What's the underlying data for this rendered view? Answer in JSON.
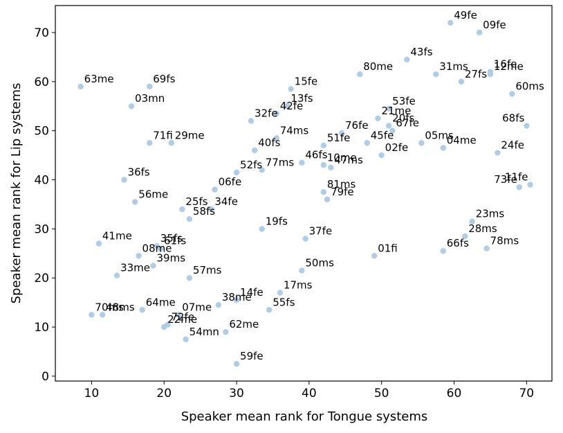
{
  "chart_data": {
    "type": "scatter",
    "xlabel": "Speaker mean rank for Tongue systems",
    "ylabel": "Speaker mean rank for Lip systems",
    "xlim": [
      5,
      73.5
    ],
    "ylim": [
      -1,
      75.5
    ],
    "xticks": [
      10,
      20,
      30,
      40,
      50,
      60,
      70
    ],
    "yticks": [
      0,
      10,
      20,
      30,
      40,
      50,
      60,
      70
    ],
    "grid": false,
    "marker_color": "#aecde8",
    "points": [
      {
        "label": "49fe",
        "x": 59.5,
        "y": 72
      },
      {
        "label": "09fe",
        "x": 63.5,
        "y": 70
      },
      {
        "label": "43fs",
        "x": 53.5,
        "y": 64.5
      },
      {
        "label": "31ms",
        "x": 57.5,
        "y": 61.5
      },
      {
        "label": "80me",
        "x": 47,
        "y": 61.5
      },
      {
        "label": "16fe",
        "x": 65,
        "y": 62
      },
      {
        "label": "27fs",
        "x": 61,
        "y": 60
      },
      {
        "label": "12me",
        "x": 65,
        "y": 61.5
      },
      {
        "label": "60ms",
        "x": 68,
        "y": 57.5
      },
      {
        "label": "63me",
        "x": 8.5,
        "y": 59
      },
      {
        "label": "69fs",
        "x": 18,
        "y": 59
      },
      {
        "label": "03mn",
        "x": 15.5,
        "y": 55
      },
      {
        "label": "15fe",
        "x": 37.5,
        "y": 58.5
      },
      {
        "label": "13fs",
        "x": 37,
        "y": 55
      },
      {
        "label": "32fe",
        "x": 32,
        "y": 52
      },
      {
        "label": "42fe",
        "x": 35.5,
        "y": 53.5
      },
      {
        "label": "74ms",
        "x": 35.5,
        "y": 48.5
      },
      {
        "label": "40fs",
        "x": 32.5,
        "y": 46
      },
      {
        "label": "53fe",
        "x": 51,
        "y": 54.5
      },
      {
        "label": "21me",
        "x": 49.5,
        "y": 52.5
      },
      {
        "label": "20fs",
        "x": 51,
        "y": 51
      },
      {
        "label": "76fe",
        "x": 44.5,
        "y": 49.5
      },
      {
        "label": "67fe",
        "x": 51.5,
        "y": 50
      },
      {
        "label": "68fs",
        "x": 70,
        "y": 51
      },
      {
        "label": "71fi",
        "x": 18,
        "y": 47.5
      },
      {
        "label": "29me",
        "x": 21,
        "y": 47.5
      },
      {
        "label": "51fe",
        "x": 42,
        "y": 47
      },
      {
        "label": "45fe",
        "x": 48,
        "y": 47.5
      },
      {
        "label": "05ms",
        "x": 55.5,
        "y": 47.5
      },
      {
        "label": "04me",
        "x": 58.5,
        "y": 46.5
      },
      {
        "label": "24fe",
        "x": 66,
        "y": 45.5
      },
      {
        "label": "02fe",
        "x": 50,
        "y": 45
      },
      {
        "label": "46fs",
        "x": 39,
        "y": 43.5
      },
      {
        "label": "10me",
        "x": 42,
        "y": 43
      },
      {
        "label": "47ms",
        "x": 43,
        "y": 42.5
      },
      {
        "label": "52fs",
        "x": 30,
        "y": 41.5
      },
      {
        "label": "77ms",
        "x": 33.5,
        "y": 42
      },
      {
        "label": "36fs",
        "x": 14.5,
        "y": 40
      },
      {
        "label": "06fe",
        "x": 27,
        "y": 38
      },
      {
        "label": "81ms",
        "x": 42,
        "y": 37.5
      },
      {
        "label": "79fe",
        "x": 42.5,
        "y": 36
      },
      {
        "label": "73fe",
        "x": 69,
        "y": 38.5
      },
      {
        "label": "11fe",
        "x": 70.5,
        "y": 39
      },
      {
        "label": "56me",
        "x": 16,
        "y": 35.5
      },
      {
        "label": "25fs",
        "x": 22.5,
        "y": 34
      },
      {
        "label": "34fe",
        "x": 26.5,
        "y": 34
      },
      {
        "label": "58fs",
        "x": 23.5,
        "y": 32
      },
      {
        "label": "19fs",
        "x": 33.5,
        "y": 30
      },
      {
        "label": "37fe",
        "x": 39.5,
        "y": 28
      },
      {
        "label": "23ms",
        "x": 62.5,
        "y": 31.5
      },
      {
        "label": "28ms",
        "x": 61.5,
        "y": 28.5
      },
      {
        "label": "78ms",
        "x": 64.5,
        "y": 26
      },
      {
        "label": "66fs",
        "x": 58.5,
        "y": 25.5
      },
      {
        "label": "41me",
        "x": 11,
        "y": 27
      },
      {
        "label": "35fs",
        "x": 19,
        "y": 26.5
      },
      {
        "label": "61fs",
        "x": 19.5,
        "y": 26
      },
      {
        "label": "01fi",
        "x": 49,
        "y": 24.5
      },
      {
        "label": "08me",
        "x": 16.5,
        "y": 24.5
      },
      {
        "label": "39ms",
        "x": 18.5,
        "y": 22.5
      },
      {
        "label": "50ms",
        "x": 39,
        "y": 21.5
      },
      {
        "label": "33me",
        "x": 13.5,
        "y": 20.5
      },
      {
        "label": "57ms",
        "x": 23.5,
        "y": 20
      },
      {
        "label": "17ms",
        "x": 36,
        "y": 17
      },
      {
        "label": "14fe",
        "x": 30,
        "y": 15.5
      },
      {
        "label": "38me",
        "x": 27.5,
        "y": 14.5
      },
      {
        "label": "55fs",
        "x": 34.5,
        "y": 13.5
      },
      {
        "label": "64me",
        "x": 17,
        "y": 13.5
      },
      {
        "label": "07me",
        "x": 22,
        "y": 12.5
      },
      {
        "label": "70ms",
        "x": 10,
        "y": 12.5
      },
      {
        "label": "48ms",
        "x": 11.5,
        "y": 12.5
      },
      {
        "label": "22me",
        "x": 20,
        "y": 10
      },
      {
        "label": "72fe",
        "x": 20.5,
        "y": 10.5
      },
      {
        "label": "62me",
        "x": 28.5,
        "y": 9
      },
      {
        "label": "54mn",
        "x": 23,
        "y": 7.5
      },
      {
        "label": "59fe",
        "x": 30,
        "y": 2.5
      }
    ]
  }
}
